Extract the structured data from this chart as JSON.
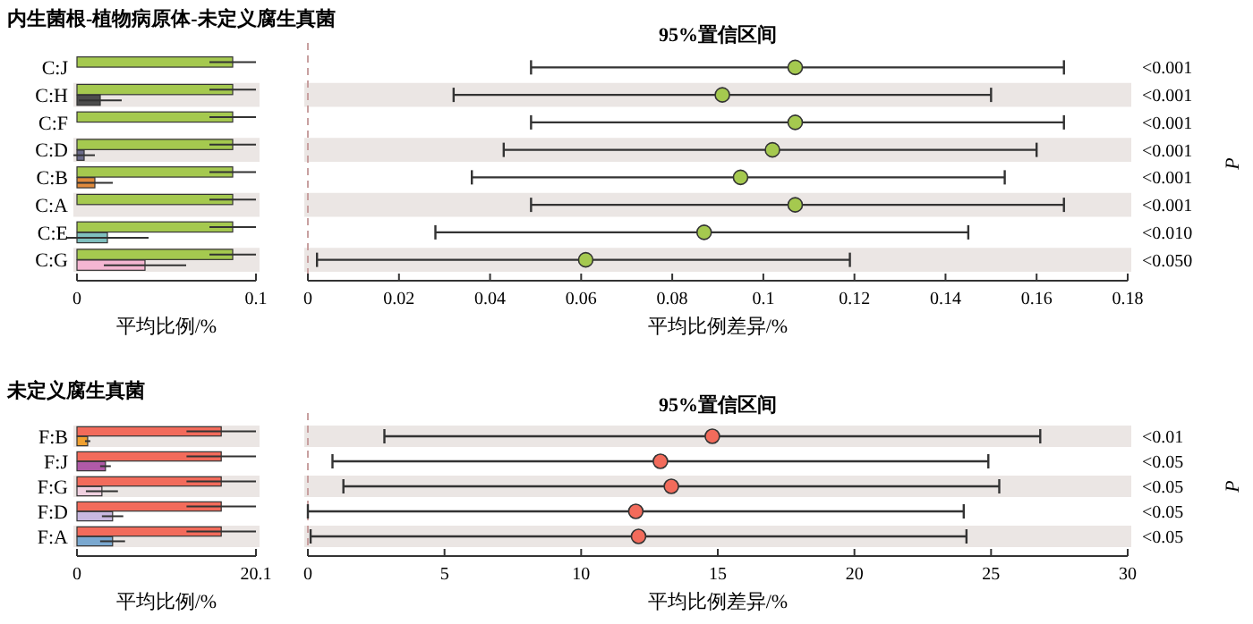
{
  "chart_data": [
    {
      "type": "bar",
      "orientation": "horizontal",
      "title": "内生菌根-植物病原体-未定义腐生真菌",
      "xlabel": "平均比例/%",
      "categories": [
        "C:J",
        "C:H",
        "C:F",
        "C:D",
        "C:B",
        "C:A",
        "C:E",
        "C:G"
      ],
      "xlim": [
        0,
        0.1
      ],
      "xticks": [
        0,
        0.1
      ],
      "series": [
        {
          "color": "#a5c94f",
          "values": [
            0.087,
            0.087,
            0.087,
            0.087,
            0.087,
            0.087,
            0.087,
            0.087
          ],
          "errors": [
            0.013,
            0.013,
            0.013,
            0.013,
            0.013,
            0.013,
            0.013,
            0.013
          ]
        },
        {
          "colors": [
            "#cccccc",
            "#4d4d4d",
            "#cccccc",
            "#6b6b8a",
            "#e08a3c",
            "#cccccc",
            "#7fbfbf",
            "#f4b6d2"
          ],
          "values": [
            0,
            0.013,
            0,
            0.004,
            0.01,
            0,
            0.017,
            0.038
          ],
          "errors": [
            null,
            0.012,
            null,
            0.006,
            0.01,
            null,
            0.023,
            0.023
          ]
        }
      ],
      "bands": [
        {
          "axis": "y",
          "from": "C:H",
          "to": "C:H",
          "color": "#ebe6e4"
        },
        {
          "axis": "y",
          "from": "C:D",
          "to": "C:D",
          "color": "#ebe6e4"
        },
        {
          "axis": "y",
          "from": "C:A",
          "to": "C:A",
          "color": "#ebe6e4"
        },
        {
          "axis": "y",
          "from": "C:G",
          "to": "C:G",
          "color": "#ebe6e4"
        }
      ]
    },
    {
      "type": "scatter",
      "orientation": "horizontal",
      "title": "95%置信区间",
      "xlabel": "平均比例差异/%",
      "y2label": "P",
      "tick_labels": "x",
      "marker": "circle",
      "categories": [
        "C:J",
        "C:H",
        "C:F",
        "C:D",
        "C:B",
        "C:A",
        "C:E",
        "C:G"
      ],
      "xlim": [
        0,
        0.18
      ],
      "xticks": [
        0,
        0.02,
        0.04,
        0.06,
        0.08,
        0.1,
        0.12,
        0.14,
        0.16,
        0.18
      ],
      "series": [
        {
          "color": "#a5c94f",
          "values": [
            0.107,
            0.091,
            0.107,
            0.102,
            0.095,
            0.107,
            0.087,
            0.061
          ],
          "errors": [
            [
              0.049,
              0.166
            ],
            [
              0.032,
              0.15
            ],
            [
              0.049,
              0.166
            ],
            [
              0.043,
              0.16
            ],
            [
              0.036,
              0.153
            ],
            [
              0.049,
              0.166
            ],
            [
              0.028,
              0.145
            ],
            [
              0.002,
              0.119
            ]
          ]
        }
      ],
      "ref_lines": [
        {
          "axis": "x",
          "value": 0,
          "color": "#c8a0a0",
          "line_style": "dashed"
        }
      ],
      "bands": [
        {
          "axis": "y",
          "from": "C:H",
          "to": "C:H",
          "color": "#ebe6e4"
        },
        {
          "axis": "y",
          "from": "C:D",
          "to": "C:D",
          "color": "#ebe6e4"
        },
        {
          "axis": "y",
          "from": "C:A",
          "to": "C:A",
          "color": "#ebe6e4"
        },
        {
          "axis": "y",
          "from": "C:G",
          "to": "C:G",
          "color": "#ebe6e4"
        }
      ],
      "annotations": [
        "<0.001",
        "<0.001",
        "<0.001",
        "<0.001",
        "<0.001",
        "<0.001",
        "<0.010",
        "<0.050"
      ]
    },
    {
      "type": "bar",
      "orientation": "horizontal",
      "title": "未定义腐生真菌",
      "xlabel": "平均比例/%",
      "categories": [
        "F:B",
        "F:J",
        "F:G",
        "F:D",
        "F:A"
      ],
      "xlim": [
        0,
        20.1
      ],
      "xticks": [
        0,
        20.1
      ],
      "series": [
        {
          "color": "#f26b5b",
          "values": [
            16.2,
            16.2,
            16.2,
            16.2,
            16.2
          ],
          "errors": [
            3.9,
            3.9,
            3.9,
            3.9,
            3.9
          ]
        },
        {
          "colors": [
            "#f0a030",
            "#b05aa8",
            "#f0d0e0",
            "#c8b8e0",
            "#7aa8d0"
          ],
          "values": [
            1.2,
            3.2,
            2.8,
            4.0,
            4.0
          ],
          "errors": [
            0.3,
            0.6,
            1.8,
            1.2,
            1.4
          ]
        }
      ],
      "bands": [
        {
          "axis": "y",
          "from": "F:B",
          "to": "F:B",
          "color": "#ebe6e4"
        },
        {
          "axis": "y",
          "from": "F:G",
          "to": "F:G",
          "color": "#ebe6e4"
        },
        {
          "axis": "y",
          "from": "F:A",
          "to": "F:A",
          "color": "#ebe6e4"
        }
      ]
    },
    {
      "type": "scatter",
      "orientation": "horizontal",
      "title": "95%置信区间",
      "xlabel": "平均比例差异/%",
      "y2label": "P",
      "tick_labels": "x",
      "marker": "circle",
      "categories": [
        "F:B",
        "F:J",
        "F:G",
        "F:D",
        "F:A"
      ],
      "xlim": [
        0,
        30
      ],
      "xticks": [
        0,
        5,
        10,
        15,
        20,
        25,
        30
      ],
      "series": [
        {
          "color": "#f26b5b",
          "values": [
            14.8,
            12.9,
            13.3,
            12.0,
            12.1
          ],
          "errors": [
            [
              2.8,
              26.8
            ],
            [
              0.9,
              24.9
            ],
            [
              1.3,
              25.3
            ],
            [
              0.0,
              24.0
            ],
            [
              0.1,
              24.1
            ]
          ]
        }
      ],
      "ref_lines": [
        {
          "axis": "x",
          "value": 0,
          "color": "#c8a0a0",
          "line_style": "dashed"
        }
      ],
      "bands": [
        {
          "axis": "y",
          "from": "F:B",
          "to": "F:B",
          "color": "#ebe6e4"
        },
        {
          "axis": "y",
          "from": "F:G",
          "to": "F:G",
          "color": "#ebe6e4"
        },
        {
          "axis": "y",
          "from": "F:A",
          "to": "F:A",
          "color": "#ebe6e4"
        }
      ],
      "annotations": [
        "<0.01",
        "<0.05",
        "<0.05",
        "<0.05",
        "<0.05"
      ]
    }
  ]
}
